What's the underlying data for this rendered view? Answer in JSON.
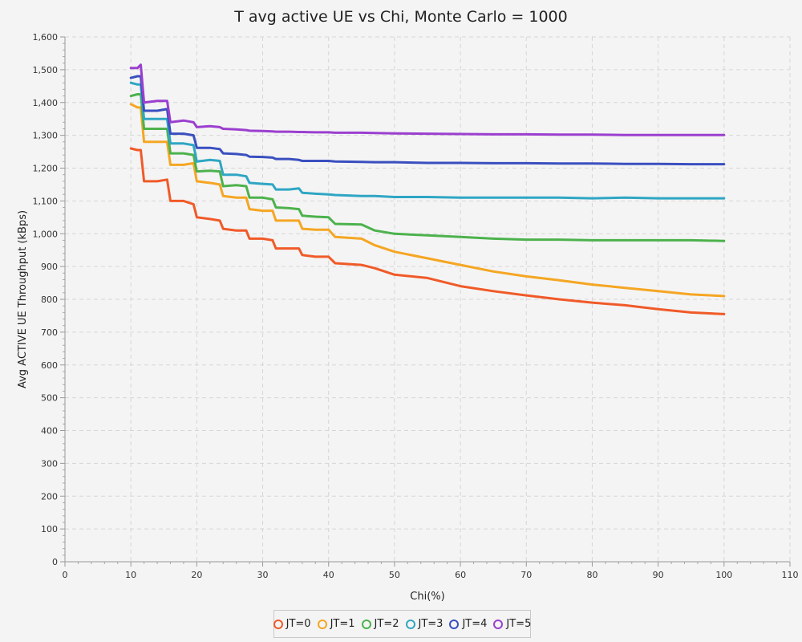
{
  "chart_data": {
    "type": "line",
    "title": "T avg active UE vs Chi, Monte Carlo = 1000",
    "xlabel": "Chi(%)",
    "ylabel": "Avg ACTIVE UE Throughput (kBps)",
    "xlim": [
      0,
      110
    ],
    "ylim": [
      0,
      1600
    ],
    "x_ticks": [
      0,
      10,
      20,
      30,
      40,
      50,
      60,
      70,
      80,
      90,
      100,
      110
    ],
    "x_tick_labels": [
      "0",
      "10",
      "20",
      "30",
      "40",
      "50",
      "60",
      "70",
      "80",
      "90",
      "100",
      "110"
    ],
    "y_ticks": [
      0,
      100,
      200,
      300,
      400,
      500,
      600,
      700,
      800,
      900,
      1000,
      1100,
      1200,
      1300,
      1400,
      1500,
      1600
    ],
    "y_tick_labels": [
      "0",
      "100",
      "200",
      "300",
      "400",
      "500",
      "600",
      "700",
      "800",
      "900",
      "1,000",
      "1,100",
      "1,200",
      "1,300",
      "1,400",
      "1,500",
      "1,600"
    ],
    "grid": true,
    "legend_position": "bottom-center",
    "series": [
      {
        "name": "JT=0",
        "color": "#f05a28",
        "x": [
          10,
          11,
          11.5,
          12,
          14,
          15.5,
          16,
          18,
          19.5,
          20,
          22,
          23.5,
          24,
          26,
          27.5,
          28,
          30,
          31.5,
          32,
          34,
          35.5,
          36,
          38,
          40,
          41,
          45,
          47,
          50,
          55,
          60,
          65,
          70,
          75,
          80,
          85,
          90,
          95,
          100
        ],
        "y": [
          1260,
          1255,
          1255,
          1160,
          1160,
          1165,
          1100,
          1100,
          1090,
          1050,
          1045,
          1040,
          1015,
          1010,
          1010,
          985,
          985,
          980,
          955,
          955,
          955,
          935,
          930,
          930,
          910,
          905,
          895,
          875,
          865,
          840,
          825,
          812,
          800,
          790,
          782,
          770,
          760,
          755
        ]
      },
      {
        "name": "JT=1",
        "color": "#f5a623",
        "x": [
          10,
          11,
          11.5,
          12,
          14,
          15.5,
          16,
          18,
          19.5,
          20,
          22,
          23.5,
          24,
          26,
          27.5,
          28,
          30,
          31.5,
          32,
          34,
          35.5,
          36,
          38,
          40,
          41,
          45,
          47,
          50,
          55,
          60,
          65,
          70,
          75,
          80,
          85,
          90,
          95,
          100
        ],
        "y": [
          1395,
          1385,
          1385,
          1280,
          1280,
          1280,
          1210,
          1210,
          1215,
          1160,
          1155,
          1150,
          1115,
          1110,
          1110,
          1075,
          1070,
          1070,
          1040,
          1040,
          1040,
          1015,
          1012,
          1012,
          990,
          985,
          965,
          945,
          925,
          905,
          885,
          870,
          858,
          845,
          835,
          825,
          815,
          810
        ]
      },
      {
        "name": "JT=2",
        "color": "#4cb24c",
        "x": [
          10,
          11,
          11.5,
          12,
          14,
          15.5,
          16,
          18,
          19.5,
          20,
          22,
          23.5,
          24,
          26,
          27.5,
          28,
          30,
          31.5,
          32,
          34,
          35.5,
          36,
          38,
          40,
          41,
          45,
          47,
          50,
          55,
          60,
          65,
          70,
          75,
          80,
          85,
          90,
          95,
          100
        ],
        "y": [
          1420,
          1425,
          1425,
          1320,
          1320,
          1320,
          1245,
          1245,
          1240,
          1190,
          1192,
          1190,
          1145,
          1148,
          1145,
          1110,
          1110,
          1105,
          1080,
          1078,
          1075,
          1055,
          1052,
          1050,
          1030,
          1028,
          1010,
          1000,
          995,
          990,
          985,
          982,
          982,
          980,
          980,
          980,
          980,
          978
        ]
      },
      {
        "name": "JT=3",
        "color": "#2fa6c4",
        "x": [
          10,
          11,
          11.5,
          12,
          14,
          15.5,
          16,
          18,
          19.5,
          20,
          22,
          23.5,
          24,
          26,
          27.5,
          28,
          30,
          31.5,
          32,
          34,
          35.5,
          36,
          38,
          40,
          41,
          45,
          47,
          50,
          55,
          60,
          65,
          70,
          75,
          80,
          85,
          90,
          95,
          100
        ],
        "y": [
          1460,
          1455,
          1455,
          1350,
          1350,
          1350,
          1275,
          1275,
          1270,
          1220,
          1225,
          1222,
          1180,
          1180,
          1175,
          1155,
          1152,
          1150,
          1135,
          1135,
          1138,
          1125,
          1122,
          1120,
          1118,
          1115,
          1115,
          1112,
          1112,
          1110,
          1110,
          1110,
          1110,
          1108,
          1110,
          1108,
          1108,
          1108
        ]
      },
      {
        "name": "JT=4",
        "color": "#3a4fbf",
        "x": [
          10,
          11,
          11.5,
          12,
          14,
          15.5,
          16,
          18,
          19.5,
          20,
          22,
          23.5,
          24,
          26,
          27.5,
          28,
          30,
          31.5,
          32,
          34,
          35.5,
          36,
          38,
          40,
          41,
          45,
          47,
          50,
          55,
          60,
          65,
          70,
          75,
          80,
          85,
          90,
          95,
          100
        ],
        "y": [
          1475,
          1480,
          1480,
          1375,
          1375,
          1380,
          1305,
          1305,
          1300,
          1262,
          1262,
          1258,
          1245,
          1243,
          1240,
          1235,
          1234,
          1232,
          1228,
          1228,
          1225,
          1222,
          1222,
          1222,
          1220,
          1219,
          1218,
          1218,
          1216,
          1216,
          1215,
          1215,
          1214,
          1214,
          1213,
          1213,
          1212,
          1212
        ]
      },
      {
        "name": "JT=5",
        "color": "#9b3fcf",
        "x": [
          10,
          11,
          11.5,
          12,
          14,
          15.5,
          16,
          18,
          19.5,
          20,
          22,
          23.5,
          24,
          26,
          27.5,
          28,
          30,
          31.5,
          32,
          34,
          35.5,
          36,
          38,
          40,
          41,
          45,
          47,
          50,
          55,
          60,
          65,
          70,
          75,
          80,
          85,
          90,
          95,
          100
        ],
        "y": [
          1505,
          1505,
          1515,
          1400,
          1405,
          1405,
          1340,
          1345,
          1340,
          1325,
          1328,
          1325,
          1320,
          1318,
          1316,
          1314,
          1313,
          1312,
          1311,
          1311,
          1310,
          1310,
          1309,
          1309,
          1308,
          1308,
          1307,
          1306,
          1305,
          1304,
          1303,
          1303,
          1302,
          1302,
          1301,
          1301,
          1301,
          1301
        ]
      }
    ]
  }
}
